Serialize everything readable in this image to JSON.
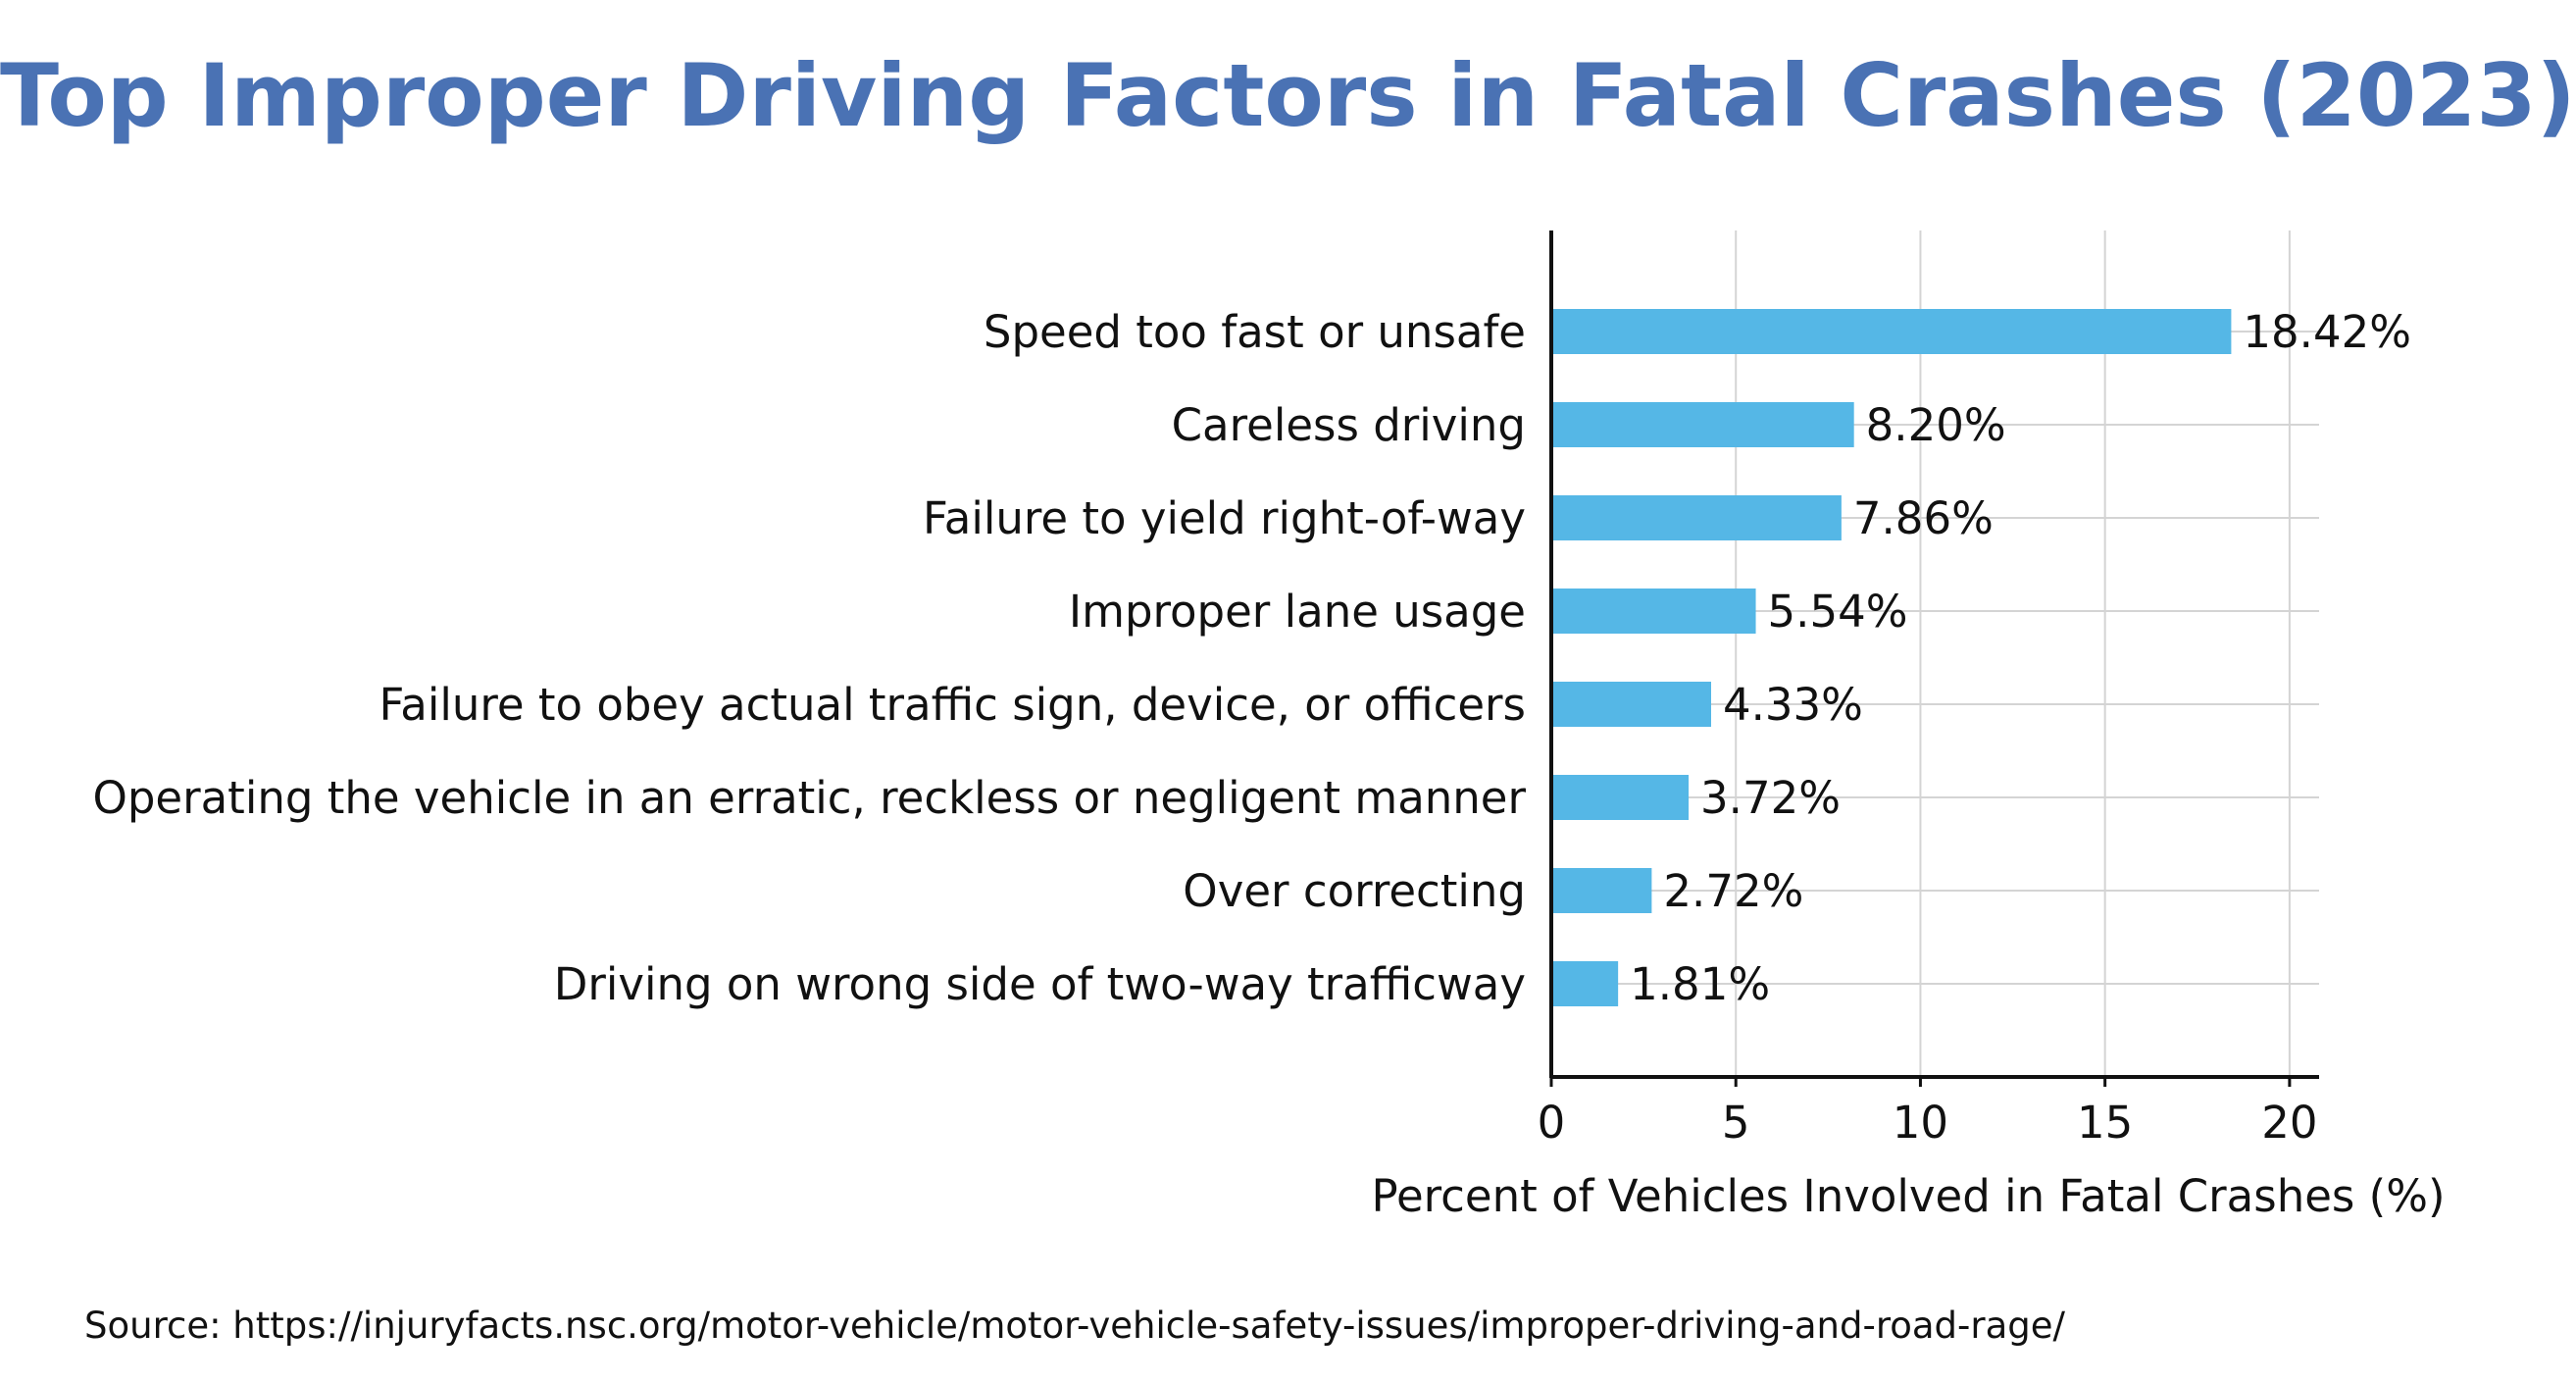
{
  "chart_data": {
    "type": "bar",
    "orientation": "horizontal",
    "title": "Top Improper Driving Factors in Fatal Crashes (2023)",
    "xlabel": "Percent of Vehicles Involved in Fatal Crashes (%)",
    "ylabel": "",
    "categories": [
      "Speed too fast or unsafe",
      "Careless driving",
      "Failure to yield right-of-way",
      "Improper lane usage",
      "Failure to obey actual traffic sign, device, or officers",
      "Operating the vehicle in an erratic, reckless or negligent manner",
      "Over correcting",
      "Driving on wrong side of two-way trafficway"
    ],
    "values": [
      18.42,
      8.2,
      7.86,
      5.54,
      4.33,
      3.72,
      2.72,
      1.81
    ],
    "data_labels": [
      "18.42%",
      "8.20%",
      "7.86%",
      "5.54%",
      "4.33%",
      "3.72%",
      "2.72%",
      "1.81%"
    ],
    "xlim": [
      0,
      20.8
    ],
    "xticks": [
      0,
      5,
      10,
      15,
      20
    ],
    "grid": true,
    "legend": "none",
    "bar_color": "#55b7e6",
    "grid_color": "#d4d4d4",
    "axis_color": "#111111"
  },
  "source_note": "Source: https://injuryfacts.nsc.org/motor-vehicle/motor-vehicle-safety-issues/improper-driving-and-road-rage/"
}
